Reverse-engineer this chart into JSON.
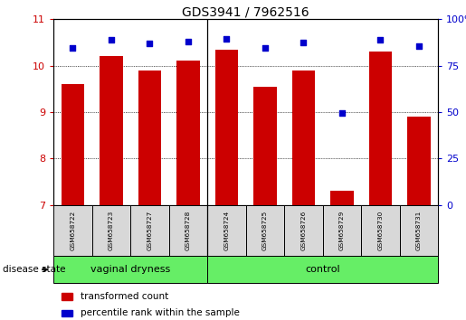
{
  "title": "GDS3941 / 7962516",
  "samples": [
    "GSM658722",
    "GSM658723",
    "GSM658727",
    "GSM658728",
    "GSM658724",
    "GSM658725",
    "GSM658726",
    "GSM658729",
    "GSM658730",
    "GSM658731"
  ],
  "red_values": [
    9.6,
    10.2,
    9.9,
    10.1,
    10.35,
    9.55,
    9.9,
    7.3,
    10.3,
    8.9
  ],
  "blue_values": [
    10.38,
    10.55,
    10.48,
    10.52,
    10.57,
    10.38,
    10.5,
    8.98,
    10.55,
    10.42
  ],
  "ylim_left": [
    7,
    11
  ],
  "ylim_right": [
    0,
    100
  ],
  "yticks_left": [
    7,
    8,
    9,
    10,
    11
  ],
  "yticks_right": [
    0,
    25,
    50,
    75,
    100
  ],
  "bar_color": "#cc0000",
  "dot_color": "#0000cc",
  "label_red": "transformed count",
  "label_blue": "percentile rank within the sample",
  "divider_after": 3,
  "group1_label": "vaginal dryness",
  "group2_label": "control",
  "group_color": "#66ee66",
  "disease_state_label": "disease state"
}
